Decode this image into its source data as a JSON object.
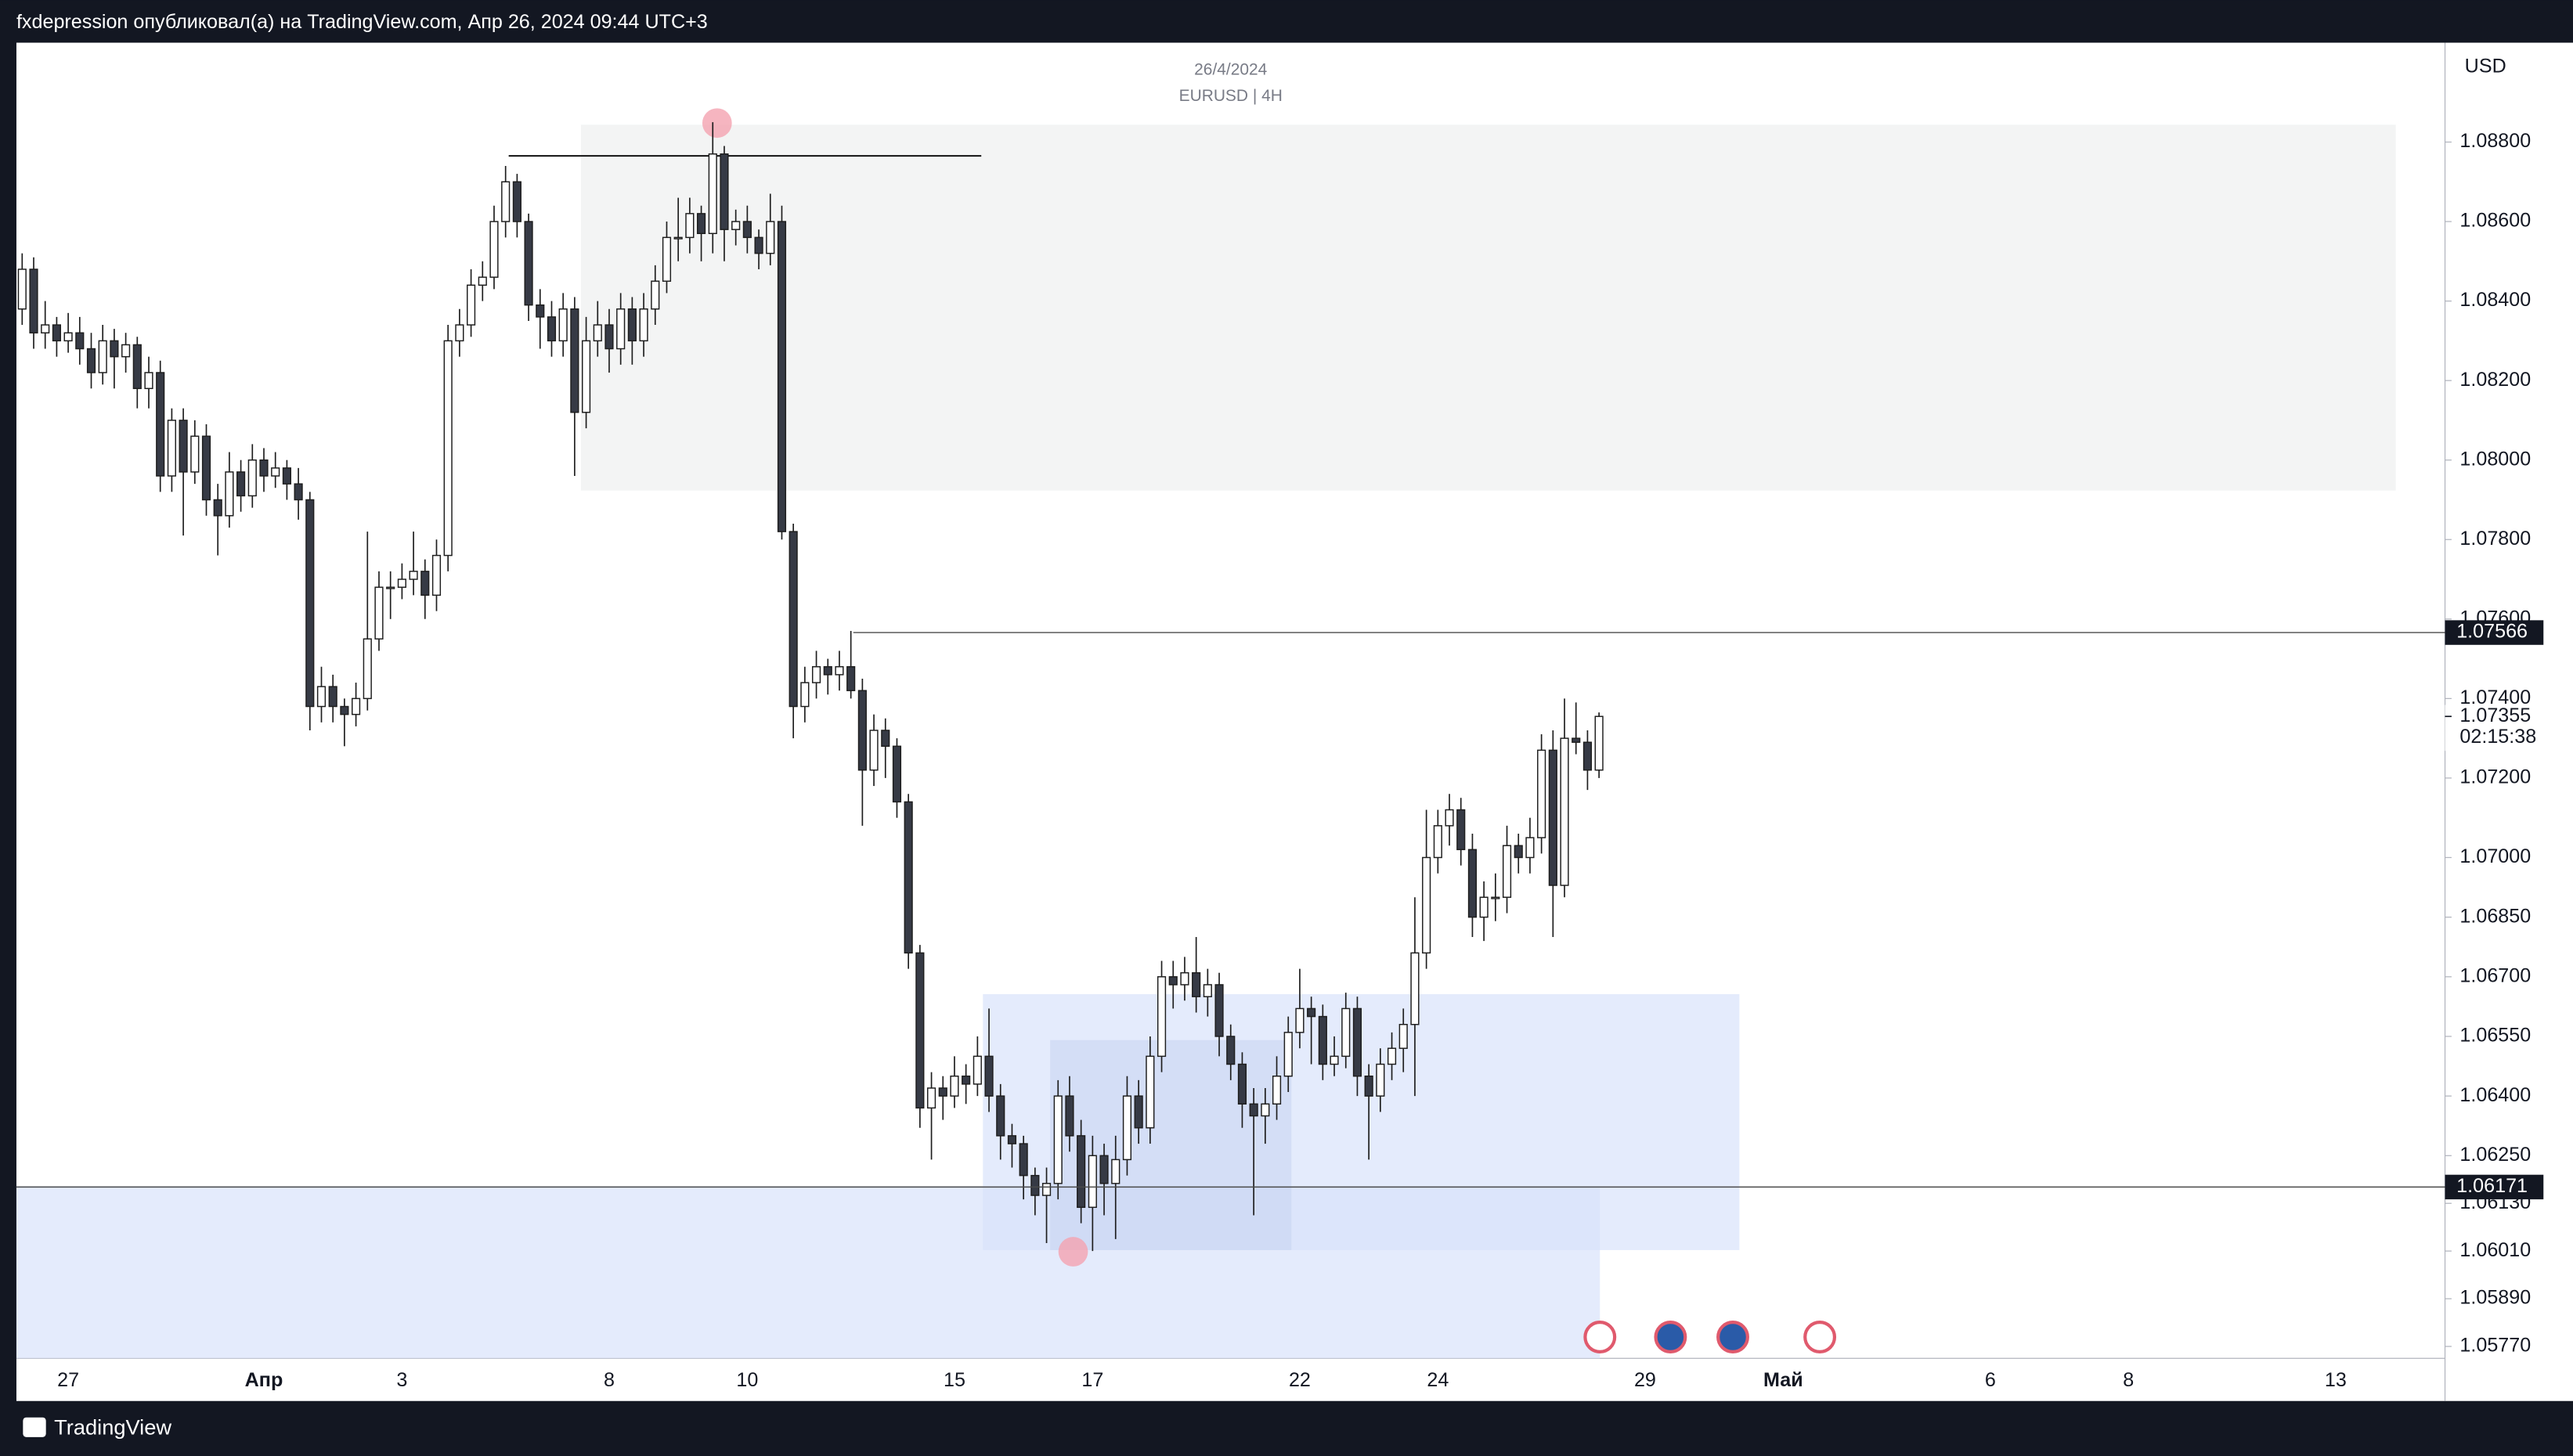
{
  "chart_data": {
    "type": "candlestick",
    "attribution": "fxdepression опубликовал(а) на TradingView.com, Апр 26, 2024 09:44 UTC+3",
    "title": "26/4/2024",
    "subtitle": "EURUSD | 4H",
    "currency": "USD",
    "brand": "TradingView",
    "ylim": [
      1.0574,
      1.0905
    ],
    "yticks": [
      {
        "value": 1.088,
        "label": "1.08800"
      },
      {
        "value": 1.086,
        "label": "1.08600"
      },
      {
        "value": 1.084,
        "label": "1.08400"
      },
      {
        "value": 1.082,
        "label": "1.08200"
      },
      {
        "value": 1.08,
        "label": "1.08000"
      },
      {
        "value": 1.078,
        "label": "1.07800"
      },
      {
        "value": 1.076,
        "label": "1.07600"
      },
      {
        "value": 1.074,
        "label": "1.07400"
      },
      {
        "value": 1.072,
        "label": "1.07200"
      },
      {
        "value": 1.07,
        "label": "1.07000"
      },
      {
        "value": 1.0685,
        "label": "1.06850"
      },
      {
        "value": 1.067,
        "label": "1.06700"
      },
      {
        "value": 1.0655,
        "label": "1.06550"
      },
      {
        "value": 1.064,
        "label": "1.06400"
      },
      {
        "value": 1.0625,
        "label": "1.06250"
      },
      {
        "value": 1.0613,
        "label": "1.06130"
      },
      {
        "value": 1.0601,
        "label": "1.06010"
      },
      {
        "value": 1.0589,
        "label": "1.05890"
      },
      {
        "value": 1.0577,
        "label": "1.05770"
      }
    ],
    "price_lines": [
      1.07566,
      1.06171
    ],
    "last_price": 1.07355,
    "countdown": "02:15:38",
    "categories": [
      null,
      null,
      null,
      null,
      "27",
      null,
      null,
      null,
      null,
      null,
      null,
      null,
      null,
      null,
      null,
      null,
      null,
      null,
      null,
      null,
      null,
      "Апр",
      null,
      null,
      null,
      null,
      null,
      null,
      null,
      null,
      null,
      null,
      null,
      "3",
      null,
      null,
      null,
      null,
      null,
      null,
      null,
      null,
      null,
      null,
      null,
      null,
      null,
      null,
      null,
      null,
      null,
      "8",
      null,
      null,
      null,
      null,
      null,
      null,
      null,
      null,
      null,
      null,
      null,
      "10",
      null,
      null,
      null,
      null,
      null,
      null,
      null,
      null,
      null,
      null,
      null,
      null,
      null,
      null,
      null,
      null,
      null,
      "15",
      null,
      null,
      null,
      null,
      null,
      null,
      null,
      null,
      null,
      null,
      null,
      "17",
      null,
      null,
      null,
      null,
      null,
      null,
      null,
      null,
      null,
      null,
      null,
      null,
      null,
      null,
      null,
      null,
      null,
      "22",
      null,
      null,
      null,
      null,
      null,
      null,
      null,
      null,
      null,
      null,
      null,
      "24",
      null,
      null,
      null,
      null,
      null,
      null,
      null,
      null,
      null,
      null,
      null,
      null,
      null,
      null,
      null,
      null,
      null,
      "29",
      null,
      null,
      null,
      null,
      null,
      null,
      null,
      null,
      null,
      null,
      null,
      "Май",
      null,
      null,
      null,
      null,
      null,
      null,
      null,
      null,
      null,
      null,
      null,
      null,
      null,
      null,
      null,
      null,
      null,
      "6",
      null,
      null,
      null,
      null,
      null,
      null,
      null,
      null,
      null,
      null,
      null,
      "8",
      null,
      null,
      null,
      null,
      null,
      null,
      null,
      null,
      null,
      null,
      null,
      null,
      null,
      null,
      null,
      null,
      null,
      "13",
      null,
      null,
      null,
      null,
      null,
      null,
      null,
      null,
      null
    ],
    "ohlc": [
      [
        1.0838,
        1.0852,
        1.0834,
        1.0848
      ],
      [
        1.0848,
        1.0851,
        1.0828,
        1.0832
      ],
      [
        1.0832,
        1.084,
        1.0828,
        1.0834
      ],
      [
        1.0834,
        1.0836,
        1.0826,
        1.083
      ],
      [
        1.083,
        1.0837,
        1.0827,
        1.0832
      ],
      [
        1.0832,
        1.0836,
        1.0824,
        1.0828
      ],
      [
        1.0828,
        1.0832,
        1.0818,
        1.0822
      ],
      [
        1.0822,
        1.0834,
        1.0819,
        1.083
      ],
      [
        1.083,
        1.0833,
        1.0818,
        1.0826
      ],
      [
        1.0826,
        1.0832,
        1.0822,
        1.0829
      ],
      [
        1.0829,
        1.0831,
        1.0813,
        1.0818
      ],
      [
        1.0818,
        1.0826,
        1.0813,
        1.0822
      ],
      [
        1.0822,
        1.0825,
        1.0792,
        1.0796
      ],
      [
        1.0796,
        1.0813,
        1.0792,
        1.081
      ],
      [
        1.081,
        1.0813,
        1.0781,
        1.0797
      ],
      [
        1.0797,
        1.081,
        1.0794,
        1.0806
      ],
      [
        1.0806,
        1.0809,
        1.0786,
        1.079
      ],
      [
        1.079,
        1.0794,
        1.0776,
        1.0786
      ],
      [
        1.0786,
        1.0802,
        1.0783,
        1.0797
      ],
      [
        1.0797,
        1.08,
        1.0787,
        1.0791
      ],
      [
        1.0791,
        1.0804,
        1.0788,
        1.08
      ],
      [
        1.08,
        1.0803,
        1.0792,
        1.0796
      ],
      [
        1.0796,
        1.0802,
        1.0793,
        1.0798
      ],
      [
        1.0798,
        1.08,
        1.079,
        1.0794
      ],
      [
        1.0794,
        1.0798,
        1.0785,
        1.079
      ],
      [
        1.079,
        1.0792,
        1.0732,
        1.0738
      ],
      [
        1.0738,
        1.0748,
        1.0734,
        1.0743
      ],
      [
        1.0743,
        1.0746,
        1.0734,
        1.0738
      ],
      [
        1.0738,
        1.074,
        1.0728,
        1.0736
      ],
      [
        1.0736,
        1.0744,
        1.0733,
        1.074
      ],
      [
        1.074,
        1.0782,
        1.0737,
        1.0755
      ],
      [
        1.0755,
        1.0772,
        1.0752,
        1.0768
      ],
      [
        1.0768,
        1.0772,
        1.076,
        1.0768
      ],
      [
        1.0768,
        1.0774,
        1.0765,
        1.077
      ],
      [
        1.077,
        1.0782,
        1.0766,
        1.0772
      ],
      [
        1.0772,
        1.0775,
        1.076,
        1.0766
      ],
      [
        1.0766,
        1.078,
        1.0762,
        1.0776
      ],
      [
        1.0776,
        1.0834,
        1.0772,
        1.083
      ],
      [
        1.083,
        1.0838,
        1.0826,
        1.0834
      ],
      [
        1.0834,
        1.0848,
        1.0831,
        1.0844
      ],
      [
        1.0844,
        1.085,
        1.084,
        1.0846
      ],
      [
        1.0846,
        1.0864,
        1.0843,
        1.086
      ],
      [
        1.086,
        1.0874,
        1.0856,
        1.087
      ],
      [
        1.087,
        1.0872,
        1.0856,
        1.086
      ],
      [
        1.086,
        1.0862,
        1.0835,
        1.0839
      ],
      [
        1.0839,
        1.0843,
        1.0828,
        1.0836
      ],
      [
        1.0836,
        1.084,
        1.0826,
        1.083
      ],
      [
        1.083,
        1.0842,
        1.0826,
        1.0838
      ],
      [
        1.0838,
        1.0841,
        1.0796,
        1.0812
      ],
      [
        1.0812,
        1.0836,
        1.0808,
        1.083
      ],
      [
        1.083,
        1.084,
        1.0826,
        1.0834
      ],
      [
        1.0834,
        1.0838,
        1.0822,
        1.0828
      ],
      [
        1.0828,
        1.0842,
        1.0824,
        1.0838
      ],
      [
        1.0838,
        1.0841,
        1.0824,
        1.083
      ],
      [
        1.083,
        1.0842,
        1.0826,
        1.0838
      ],
      [
        1.0838,
        1.0849,
        1.0834,
        1.0845
      ],
      [
        1.0845,
        1.086,
        1.0842,
        1.0856
      ],
      [
        1.0856,
        1.0866,
        1.085,
        1.0856
      ],
      [
        1.0856,
        1.0866,
        1.0852,
        1.0862
      ],
      [
        1.0862,
        1.0864,
        1.085,
        1.0857
      ],
      [
        1.0857,
        1.0885,
        1.0852,
        1.0877
      ],
      [
        1.0877,
        1.0879,
        1.085,
        1.0858
      ],
      [
        1.0858,
        1.0863,
        1.0854,
        1.086
      ],
      [
        1.086,
        1.0864,
        1.0852,
        1.0856
      ],
      [
        1.0856,
        1.0858,
        1.0848,
        1.0852
      ],
      [
        1.0852,
        1.0867,
        1.0849,
        1.086
      ],
      [
        1.086,
        1.0864,
        1.078,
        1.0782
      ],
      [
        1.0782,
        1.0784,
        1.073,
        1.0738
      ],
      [
        1.0738,
        1.0748,
        1.0734,
        1.0744
      ],
      [
        1.0744,
        1.0752,
        1.074,
        1.0748
      ],
      [
        1.0748,
        1.075,
        1.0741,
        1.0746
      ],
      [
        1.0746,
        1.0752,
        1.0742,
        1.0748
      ],
      [
        1.0748,
        1.0757,
        1.074,
        1.0742
      ],
      [
        1.0742,
        1.0745,
        1.0708,
        1.0722
      ],
      [
        1.0722,
        1.0736,
        1.0718,
        1.0732
      ],
      [
        1.0732,
        1.0735,
        1.072,
        1.0728
      ],
      [
        1.0728,
        1.073,
        1.071,
        1.0714
      ],
      [
        1.0714,
        1.0716,
        1.0672,
        1.0676
      ],
      [
        1.0676,
        1.0678,
        1.0632,
        1.0637
      ],
      [
        1.0637,
        1.0646,
        1.0624,
        1.0642
      ],
      [
        1.0642,
        1.0645,
        1.0634,
        1.064
      ],
      [
        1.064,
        1.065,
        1.0637,
        1.0645
      ],
      [
        1.0645,
        1.0648,
        1.0638,
        1.0643
      ],
      [
        1.0643,
        1.0655,
        1.064,
        1.065
      ],
      [
        1.065,
        1.0662,
        1.0636,
        1.064
      ],
      [
        1.064,
        1.0643,
        1.0624,
        1.063
      ],
      [
        1.063,
        1.0633,
        1.0622,
        1.0628
      ],
      [
        1.0628,
        1.063,
        1.0614,
        1.062
      ],
      [
        1.062,
        1.0622,
        1.061,
        1.0615
      ],
      [
        1.0615,
        1.0622,
        1.0603,
        1.0618
      ],
      [
        1.0618,
        1.0644,
        1.0614,
        1.064
      ],
      [
        1.064,
        1.0645,
        1.0626,
        1.063
      ],
      [
        1.063,
        1.0634,
        1.0608,
        1.0612
      ],
      [
        1.0612,
        1.063,
        1.0601,
        1.0625
      ],
      [
        1.0625,
        1.0628,
        1.061,
        1.0618
      ],
      [
        1.0618,
        1.063,
        1.0604,
        1.0624
      ],
      [
        1.0624,
        1.0645,
        1.062,
        1.064
      ],
      [
        1.064,
        1.0644,
        1.0628,
        1.0632
      ],
      [
        1.0632,
        1.0655,
        1.0628,
        1.065
      ],
      [
        1.065,
        1.0674,
        1.0646,
        1.067
      ],
      [
        1.067,
        1.0674,
        1.0662,
        1.0668
      ],
      [
        1.0668,
        1.0675,
        1.0664,
        1.0671
      ],
      [
        1.0671,
        1.068,
        1.0661,
        1.0665
      ],
      [
        1.0665,
        1.0672,
        1.066,
        1.0668
      ],
      [
        1.0668,
        1.0671,
        1.065,
        1.0655
      ],
      [
        1.0655,
        1.0658,
        1.0644,
        1.0648
      ],
      [
        1.0648,
        1.0651,
        1.0632,
        1.0638
      ],
      [
        1.0638,
        1.0642,
        1.061,
        1.0635
      ],
      [
        1.0635,
        1.0642,
        1.0628,
        1.0638
      ],
      [
        1.0638,
        1.065,
        1.0634,
        1.0645
      ],
      [
        1.0645,
        1.066,
        1.0641,
        1.0656
      ],
      [
        1.0656,
        1.0672,
        1.0652,
        1.0662
      ],
      [
        1.0662,
        1.0665,
        1.0648,
        1.066
      ],
      [
        1.066,
        1.0663,
        1.0644,
        1.0648
      ],
      [
        1.0648,
        1.0655,
        1.0645,
        1.065
      ],
      [
        1.065,
        1.0666,
        1.0647,
        1.0662
      ],
      [
        1.0662,
        1.0665,
        1.064,
        1.0645
      ],
      [
        1.0645,
        1.0648,
        1.0624,
        1.064
      ],
      [
        1.064,
        1.0652,
        1.0636,
        1.0648
      ],
      [
        1.0648,
        1.0656,
        1.0644,
        1.0652
      ],
      [
        1.0652,
        1.0662,
        1.0646,
        1.0658
      ],
      [
        1.0658,
        1.069,
        1.064,
        1.0676
      ],
      [
        1.0676,
        1.0712,
        1.0672,
        1.07
      ],
      [
        1.07,
        1.0712,
        1.0696,
        1.0708
      ],
      [
        1.0708,
        1.0716,
        1.0703,
        1.0712
      ],
      [
        1.0712,
        1.0715,
        1.0698,
        1.0702
      ],
      [
        1.0702,
        1.0706,
        1.068,
        1.0685
      ],
      [
        1.0685,
        1.0694,
        1.0679,
        1.069
      ],
      [
        1.069,
        1.0696,
        1.0684,
        1.069
      ],
      [
        1.069,
        1.0708,
        1.0686,
        1.0703
      ],
      [
        1.0703,
        1.0706,
        1.0696,
        1.07
      ],
      [
        1.07,
        1.071,
        1.0696,
        1.0705
      ],
      [
        1.0705,
        1.0731,
        1.0701,
        1.0727
      ],
      [
        1.0727,
        1.0732,
        1.068,
        1.0693
      ],
      [
        1.0693,
        1.074,
        1.069,
        1.073
      ],
      [
        1.073,
        1.0739,
        1.0726,
        1.0729
      ],
      [
        1.0729,
        1.0732,
        1.0717,
        1.0722
      ],
      [
        1.0722,
        1.07365,
        1.072,
        1.07355
      ],
      null,
      null,
      null,
      null,
      null,
      null,
      null,
      null,
      null,
      null,
      null,
      null,
      null,
      null,
      null,
      null,
      null,
      null,
      null,
      null,
      null,
      null,
      null,
      null,
      null,
      null,
      null,
      null,
      null,
      null,
      null,
      null,
      null,
      null,
      null,
      null,
      null,
      null,
      null,
      null,
      null,
      null,
      null,
      null,
      null,
      null,
      null,
      null,
      null,
      null,
      null,
      null,
      null,
      null,
      null,
      null,
      null,
      null,
      null,
      null,
      null,
      null,
      null,
      null,
      null,
      null,
      null,
      null,
      null,
      null,
      null,
      null,
      null
    ],
    "up_color": "#ffffff",
    "down_color": "#363a45",
    "wick_color": "#1e1e1e"
  }
}
